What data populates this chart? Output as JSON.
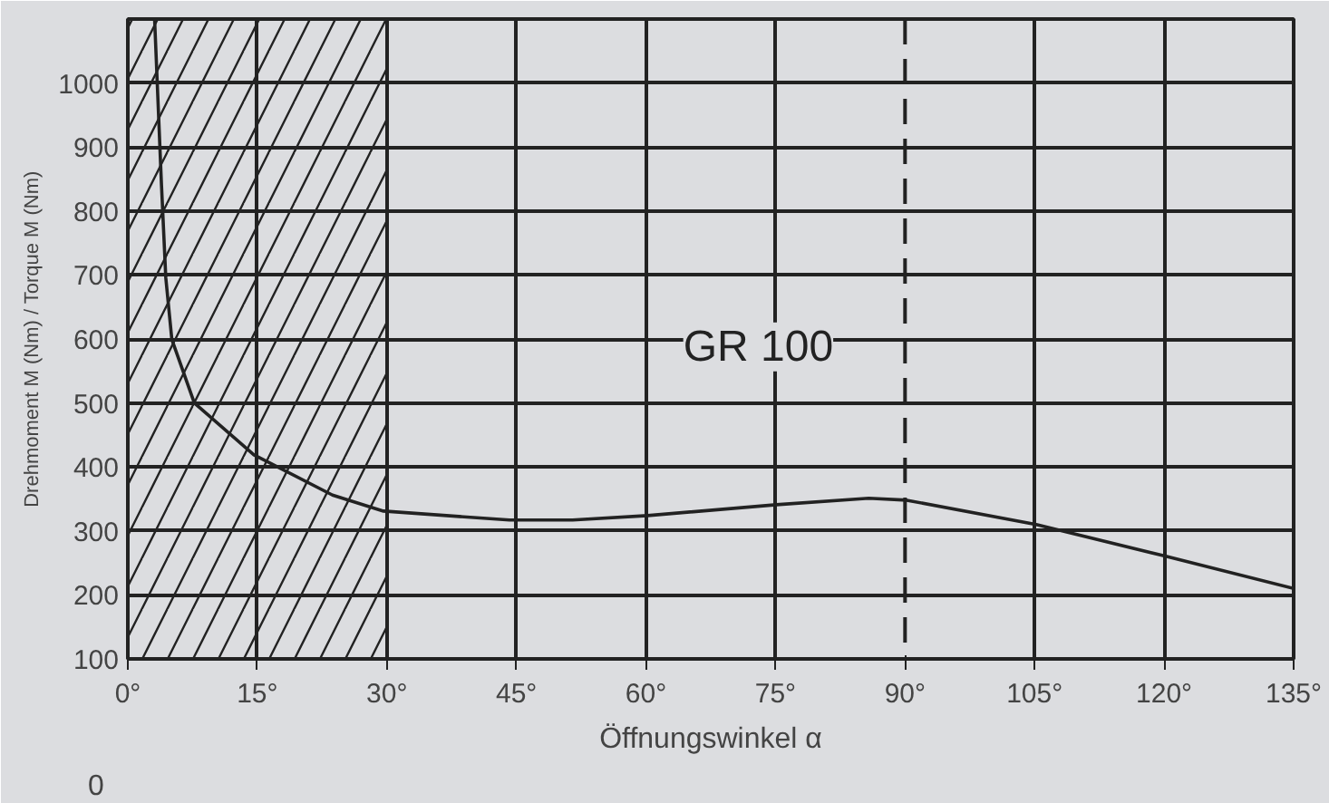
{
  "chart_data": {
    "type": "line",
    "xlabel": "Öffnungswinkel α",
    "ylabel": "Drehmoment M (Nm) / Torque M (Nm)",
    "xlim": [
      0,
      135
    ],
    "ylim": [
      100,
      1100
    ],
    "xticks": [
      {
        "value": 0,
        "label": "0°"
      },
      {
        "value": 15,
        "label": "15°"
      },
      {
        "value": 30,
        "label": "30°"
      },
      {
        "value": 45,
        "label": "45°"
      },
      {
        "value": 60,
        "label": "60°"
      },
      {
        "value": 75,
        "label": "75°"
      },
      {
        "value": 90,
        "label": "90°"
      },
      {
        "value": 105,
        "label": "105°"
      },
      {
        "value": 120,
        "label": "120°"
      },
      {
        "value": 135,
        "label": "135°"
      }
    ],
    "yticks": [
      100,
      200,
      300,
      400,
      500,
      600,
      700,
      800,
      900,
      1000
    ],
    "grid": true,
    "legend": false,
    "marker": "none",
    "line_style": "solid",
    "series": [
      {
        "name": "GR 100",
        "color": "#222222",
        "x": [
          3.1,
          3.9,
          4.4,
          5.1,
          7.7,
          14.6,
          23.7,
          29.6,
          44.2,
          51.5,
          60.2,
          75.1,
          85.8,
          90.2,
          105.2,
          120,
          135
        ],
        "values": [
          1100,
          840,
          695,
          599,
          500,
          419,
          356,
          331,
          317,
          317,
          324,
          341,
          351,
          348,
          310,
          261,
          210
        ]
      }
    ],
    "bands": [
      {
        "axis": "x",
        "from": 0,
        "to": 30,
        "color": "#222222"
      }
    ],
    "ref_lines": [
      {
        "axis": "x",
        "value": 90,
        "line_style": "dashed",
        "color": "#222222"
      }
    ],
    "annotations": [
      "0"
    ]
  }
}
